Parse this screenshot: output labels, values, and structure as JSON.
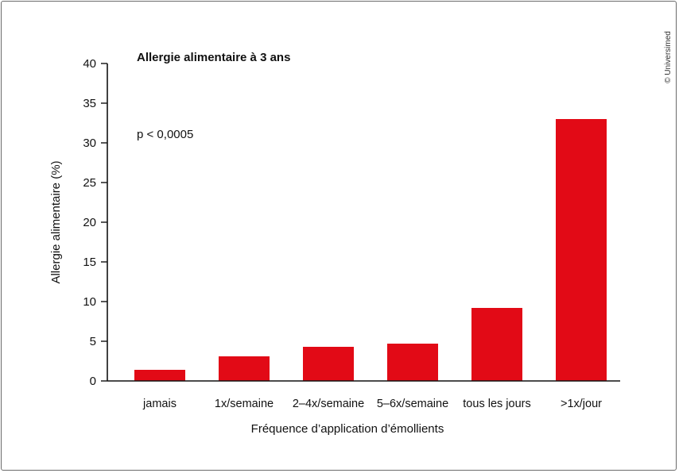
{
  "chart_data": {
    "type": "bar",
    "title": "Allergie alimentaire à 3 ans",
    "annotation": "p < 0,0005",
    "xlabel": "Fréquence d’application d’émollients",
    "ylabel": "Allergie alimentaire (%)",
    "ylim": [
      0,
      40
    ],
    "yticks": [
      0,
      5,
      10,
      15,
      20,
      25,
      30,
      35,
      40
    ],
    "categories": [
      "jamais",
      "1x/semaine",
      "2–4x/semaine",
      "5–6x/semaine",
      "tous les jours",
      ">1x/jour"
    ],
    "values": [
      1.4,
      3.1,
      4.3,
      4.7,
      9.2,
      33.0
    ],
    "bar_color": "#e20a16",
    "grid": false,
    "legend": "none"
  },
  "credit": "© Universimed"
}
